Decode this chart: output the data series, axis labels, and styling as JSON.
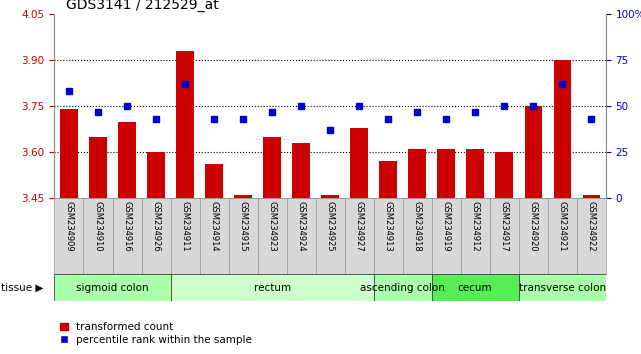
{
  "title": "GDS3141 / 212529_at",
  "samples": [
    "GSM234909",
    "GSM234910",
    "GSM234916",
    "GSM234926",
    "GSM234911",
    "GSM234914",
    "GSM234915",
    "GSM234923",
    "GSM234924",
    "GSM234925",
    "GSM234927",
    "GSM234913",
    "GSM234918",
    "GSM234919",
    "GSM234912",
    "GSM234917",
    "GSM234920",
    "GSM234921",
    "GSM234922"
  ],
  "bar_values": [
    3.74,
    3.65,
    3.7,
    3.6,
    3.93,
    3.56,
    3.46,
    3.65,
    3.63,
    3.46,
    3.68,
    3.57,
    3.61,
    3.61,
    3.61,
    3.6,
    3.75,
    3.9,
    3.46
  ],
  "dot_values": [
    58,
    47,
    50,
    43,
    62,
    43,
    43,
    47,
    50,
    37,
    50,
    43,
    47,
    43,
    47,
    50,
    50,
    62,
    43
  ],
  "ylim_left": [
    3.45,
    4.05
  ],
  "ylim_right": [
    0,
    100
  ],
  "yticks_left": [
    3.45,
    3.6,
    3.75,
    3.9,
    4.05
  ],
  "yticks_right": [
    0,
    25,
    50,
    75,
    100
  ],
  "ytick_labels_right": [
    "0",
    "25",
    "50",
    "75",
    "100%"
  ],
  "grid_values": [
    3.6,
    3.75,
    3.9
  ],
  "bar_color": "#cc0000",
  "dot_color": "#0000cc",
  "tissue_groups": [
    {
      "label": "sigmoid colon",
      "start": 0,
      "end": 4,
      "color": "#aaffaa"
    },
    {
      "label": "rectum",
      "start": 4,
      "end": 11,
      "color": "#ccffcc"
    },
    {
      "label": "ascending colon",
      "start": 11,
      "end": 13,
      "color": "#aaffaa"
    },
    {
      "label": "cecum",
      "start": 13,
      "end": 16,
      "color": "#55ee55"
    },
    {
      "label": "transverse colon",
      "start": 16,
      "end": 19,
      "color": "#aaffaa"
    }
  ],
  "tissue_label": "tissue",
  "legend_bar_label": "transformed count",
  "legend_dot_label": "percentile rank within the sample",
  "left_tick_color": "#cc0000",
  "right_tick_color": "#0000cc",
  "title_fontsize": 10,
  "tick_fontsize": 7.5,
  "tissue_fontsize": 7.5,
  "label_fontsize": 6.0,
  "xlabel_box_color": "#d8d8d8",
  "xlabel_edge_color": "#888888"
}
